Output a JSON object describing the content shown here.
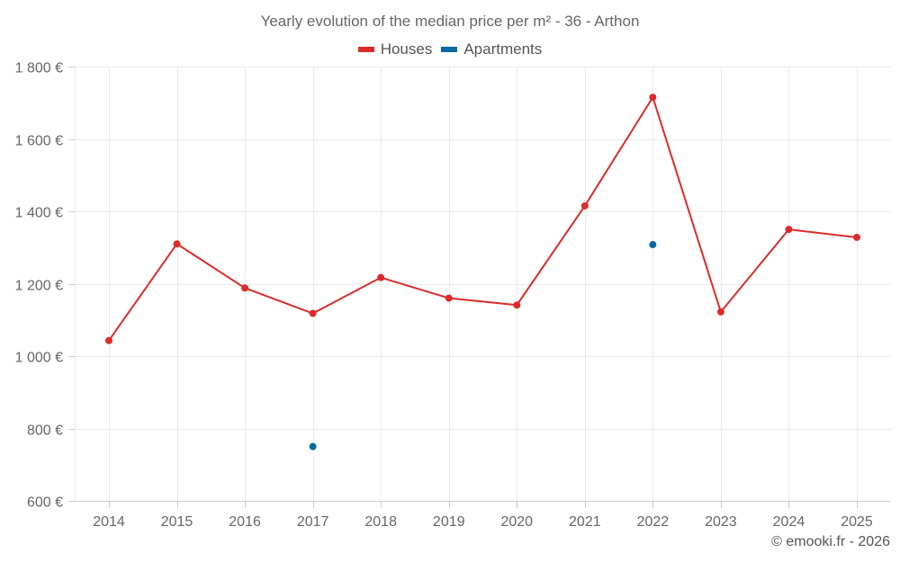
{
  "chart_data": {
    "type": "line",
    "title": "Yearly evolution of the median price per m² - 36 - Arthon",
    "xlabel": "",
    "ylabel": "",
    "categories": [
      "2014",
      "2015",
      "2016",
      "2017",
      "2018",
      "2019",
      "2020",
      "2021",
      "2022",
      "2023",
      "2024",
      "2025"
    ],
    "series": [
      {
        "name": "Houses",
        "color": "#dd2b2b",
        "values": [
          1043,
          1310,
          1188,
          1118,
          1217,
          1160,
          1141,
          1415,
          1715,
          1122,
          1350,
          1328
        ]
      },
      {
        "name": "Apartments",
        "color": "#0868a0",
        "values": [
          null,
          null,
          null,
          750,
          null,
          null,
          null,
          null,
          1308,
          null,
          null,
          null
        ]
      }
    ],
    "ylim": [
      600,
      1800
    ],
    "yticks": [
      600,
      800,
      1000,
      1200,
      1400,
      1600,
      1800
    ],
    "ytick_labels": [
      "600 €",
      "800 €",
      "1 000 €",
      "1 200 €",
      "1 400 €",
      "1 600 €",
      "1 800 €"
    ],
    "grid": true,
    "legend_position": "top-center"
  },
  "header": {
    "title": "Yearly evolution of the median price per m² - 36 - Arthon"
  },
  "legend": {
    "items": [
      {
        "label": "Houses",
        "color": "#dd2b2b"
      },
      {
        "label": "Apartments",
        "color": "#0868a0"
      }
    ]
  },
  "footer": {
    "credits": "© emooki.fr - 2026"
  }
}
